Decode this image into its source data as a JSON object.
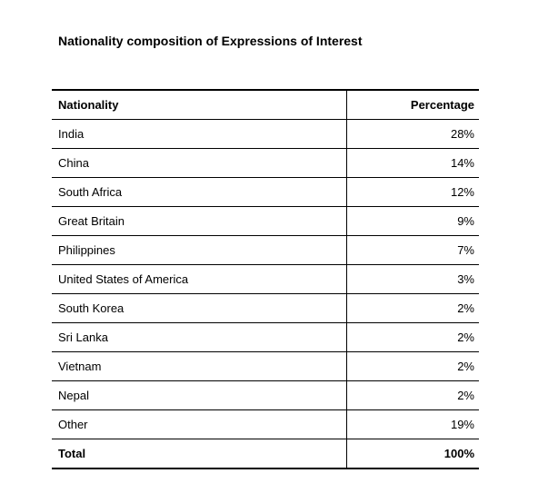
{
  "title": "Nationality composition of Expressions of Interest",
  "table": {
    "headers": {
      "nationality": "Nationality",
      "percentage": "Percentage"
    },
    "rows": [
      {
        "nationality": "India",
        "percentage": "28%"
      },
      {
        "nationality": "China",
        "percentage": "14%"
      },
      {
        "nationality": "South Africa",
        "percentage": "12%"
      },
      {
        "nationality": "Great Britain",
        "percentage": "9%"
      },
      {
        "nationality": "Philippines",
        "percentage": "7%"
      },
      {
        "nationality": "United States of America",
        "percentage": "3%"
      },
      {
        "nationality": "South Korea",
        "percentage": "2%"
      },
      {
        "nationality": "Sri Lanka",
        "percentage": "2%"
      },
      {
        "nationality": "Vietnam",
        "percentage": "2%"
      },
      {
        "nationality": "Nepal",
        "percentage": "2%"
      },
      {
        "nationality": "Other",
        "percentage": "19%"
      }
    ],
    "total": {
      "label": "Total",
      "percentage": "100%"
    }
  }
}
